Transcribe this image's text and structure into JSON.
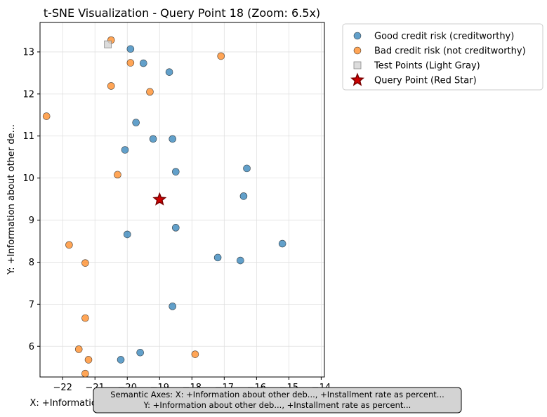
{
  "chart_data": {
    "type": "scatter",
    "title": "t-SNE Visualization - Query Point 18 (Zoom: 6.5x)",
    "xlabel": "X: +Information about other deb..., +Installment rate as percent...",
    "ylabel": "Y: +Information about other de...",
    "xlim": [
      -22.7,
      -13.9
    ],
    "ylim": [
      5.27,
      13.7
    ],
    "x_ticks": [
      -22,
      -21,
      -20,
      -19,
      -18,
      -17,
      -16,
      -15,
      -14
    ],
    "y_ticks": [
      6,
      7,
      8,
      9,
      10,
      11,
      12,
      13
    ],
    "x_tick_labels": [
      "−22",
      "−21",
      "−20",
      "−19",
      "−18",
      "−17",
      "−16",
      "−15",
      "−14"
    ],
    "y_tick_labels": [
      "6",
      "7",
      "8",
      "9",
      "10",
      "11",
      "12",
      "13"
    ],
    "grid": true,
    "legend_position": "outside-right",
    "series": [
      {
        "name": "Good credit risk (creditworthy)",
        "color": "#1f77b4",
        "marker": "circle",
        "points": [
          [
            -19.9,
            13.07
          ],
          [
            -19.5,
            12.73
          ],
          [
            -18.7,
            12.52
          ],
          [
            -19.73,
            11.32
          ],
          [
            -19.2,
            10.93
          ],
          [
            -18.6,
            10.93
          ],
          [
            -20.07,
            10.67
          ],
          [
            -18.5,
            10.15
          ],
          [
            -16.3,
            10.23
          ],
          [
            -16.4,
            9.57
          ],
          [
            -20.0,
            8.66
          ],
          [
            -18.5,
            8.82
          ],
          [
            -17.2,
            8.11
          ],
          [
            -16.5,
            8.04
          ],
          [
            -15.2,
            8.44
          ],
          [
            -18.6,
            6.95
          ],
          [
            -19.6,
            5.85
          ],
          [
            -20.2,
            5.68
          ]
        ]
      },
      {
        "name": "Bad credit risk (not creditworthy)",
        "color": "#ff7f0e",
        "marker": "circle",
        "points": [
          [
            -20.5,
            13.28
          ],
          [
            -17.1,
            12.9
          ],
          [
            -19.9,
            12.74
          ],
          [
            -20.5,
            12.19
          ],
          [
            -19.3,
            12.05
          ],
          [
            -22.5,
            11.47
          ],
          [
            -20.3,
            10.08
          ],
          [
            -21.8,
            8.41
          ],
          [
            -21.3,
            7.98
          ],
          [
            -21.3,
            6.67
          ],
          [
            -21.5,
            5.93
          ],
          [
            -21.2,
            5.68
          ],
          [
            -21.3,
            5.35
          ],
          [
            -17.9,
            5.81
          ]
        ]
      },
      {
        "name": "Test Points (Light Gray)",
        "color": "#d3d3d3",
        "marker": "square",
        "points": [
          [
            -20.6,
            13.18
          ]
        ]
      },
      {
        "name": "Query Point (Red Star)",
        "color": "#cc0000",
        "marker": "star",
        "points": [
          [
            -19.0,
            9.49
          ]
        ]
      }
    ],
    "footer": {
      "line1": "Semantic Axes: X: +Information about other deb..., +Installment rate as percent...",
      "line2": "Y: +Information about other deb..., +Installment rate as percent..."
    }
  }
}
